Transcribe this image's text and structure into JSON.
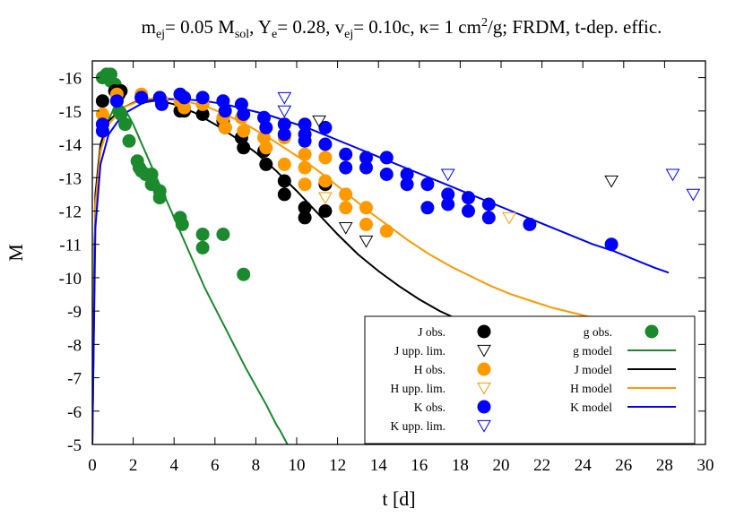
{
  "chart_data": {
    "type": "scatter",
    "title": {
      "m": "m",
      "m_sub": "ej",
      "m_rest": "= 0.05 M",
      "msol_sub": "sol",
      "ye": ", Y",
      "ye_sub": "e",
      "ye_rest": "= 0.28, v",
      "v_sub": "ej",
      "v_rest": "= 0.10c, κ= 1 cm",
      "sup": "2",
      "tail": "/g; FRDM, t-dep. effic."
    },
    "xlabel": "t [d]",
    "ylabel": "M",
    "xlim": [
      0,
      30
    ],
    "ylim": [
      -5,
      -16.5
    ],
    "x_ticks": [
      0,
      2,
      4,
      6,
      8,
      10,
      12,
      14,
      16,
      18,
      20,
      22,
      24,
      26,
      28,
      30
    ],
    "y_ticks": [
      -5,
      -6,
      -7,
      -8,
      -9,
      -10,
      -11,
      -12,
      -13,
      -14,
      -15,
      -16
    ],
    "grid": false,
    "legend_placement": "bottom-right",
    "colors": {
      "J": "#000000",
      "H": "#ff9900",
      "K": "#0000ff",
      "g": "#1a8a2c"
    },
    "legend": [
      {
        "label": "J obs.",
        "key": "J",
        "kind": "obs"
      },
      {
        "label": "g obs.",
        "key": "g",
        "kind": "obs"
      },
      {
        "label": "J upp. lim.",
        "key": "J",
        "kind": "lim"
      },
      {
        "label": "g model",
        "key": "g",
        "kind": "line"
      },
      {
        "label": "H obs.",
        "key": "H",
        "kind": "obs"
      },
      {
        "label": "J model",
        "key": "J",
        "kind": "line"
      },
      {
        "label": "H upp. lim.",
        "key": "H",
        "kind": "lim"
      },
      {
        "label": "H model",
        "key": "H",
        "kind": "line"
      },
      {
        "label": "K obs.",
        "key": "K",
        "kind": "obs"
      },
      {
        "label": "K model",
        "key": "K",
        "kind": "line"
      },
      {
        "label": "K upp. lim.",
        "key": "K",
        "kind": "lim"
      }
    ],
    "series": [
      {
        "key": "g",
        "kind": "obs",
        "points": [
          [
            0.5,
            -16.0
          ],
          [
            0.7,
            -16.1
          ],
          [
            0.9,
            -16.1
          ],
          [
            0.9,
            -15.9
          ],
          [
            1.1,
            -15.8
          ],
          [
            1.2,
            -15.3
          ],
          [
            1.3,
            -15.0
          ],
          [
            1.4,
            -14.9
          ],
          [
            1.6,
            -14.6
          ],
          [
            1.8,
            -14.1
          ],
          [
            2.2,
            -13.5
          ],
          [
            2.3,
            -13.3
          ],
          [
            2.4,
            -13.2
          ],
          [
            2.6,
            -13.1
          ],
          [
            2.9,
            -13.1
          ],
          [
            2.9,
            -12.8
          ],
          [
            3.3,
            -12.6
          ],
          [
            3.3,
            -12.4
          ],
          [
            4.3,
            -11.8
          ],
          [
            4.4,
            -11.6
          ],
          [
            5.4,
            -11.3
          ],
          [
            5.4,
            -10.9
          ],
          [
            6.4,
            -11.3
          ],
          [
            7.4,
            -10.1
          ]
        ]
      },
      {
        "key": "J",
        "kind": "obs",
        "points": [
          [
            0.5,
            -15.3
          ],
          [
            1.1,
            -15.6
          ],
          [
            1.2,
            -15.5
          ],
          [
            1.3,
            -15.5
          ],
          [
            1.4,
            -15.6
          ],
          [
            2.4,
            -15.4
          ],
          [
            3.4,
            -15.3
          ],
          [
            4.3,
            -15.0
          ],
          [
            4.5,
            -15.0
          ],
          [
            5.4,
            -14.9
          ],
          [
            6.4,
            -14.7
          ],
          [
            6.5,
            -14.5
          ],
          [
            7.3,
            -14.2
          ],
          [
            7.4,
            -13.9
          ],
          [
            8.4,
            -13.8
          ],
          [
            8.5,
            -13.4
          ],
          [
            9.4,
            -12.9
          ],
          [
            9.4,
            -12.5
          ],
          [
            10.4,
            -12.1
          ],
          [
            10.4,
            -11.8
          ],
          [
            11.4,
            -12.0
          ],
          [
            11.4,
            -12.8
          ]
        ]
      },
      {
        "key": "J",
        "kind": "lim",
        "points": [
          [
            11.1,
            -14.7
          ],
          [
            12.4,
            -11.5
          ],
          [
            13.4,
            -11.1
          ],
          [
            25.4,
            -12.9
          ]
        ]
      },
      {
        "key": "H",
        "kind": "obs",
        "points": [
          [
            0.5,
            -14.9
          ],
          [
            1.2,
            -15.5
          ],
          [
            2.4,
            -15.5
          ],
          [
            3.4,
            -15.3
          ],
          [
            4.3,
            -15.3
          ],
          [
            4.5,
            -15.1
          ],
          [
            5.4,
            -15.2
          ],
          [
            6.4,
            -14.8
          ],
          [
            6.5,
            -14.5
          ],
          [
            7.3,
            -14.8
          ],
          [
            7.4,
            -14.4
          ],
          [
            8.4,
            -14.2
          ],
          [
            8.5,
            -13.9
          ],
          [
            9.4,
            -14.2
          ],
          [
            9.4,
            -13.4
          ],
          [
            10.4,
            -13.7
          ],
          [
            10.4,
            -13.3
          ],
          [
            10.4,
            -12.8
          ],
          [
            11.4,
            -13.6
          ],
          [
            11.4,
            -12.9
          ],
          [
            12.4,
            -12.5
          ],
          [
            12.4,
            -12.1
          ],
          [
            13.4,
            -12.1
          ],
          [
            13.4,
            -11.6
          ],
          [
            14.4,
            -11.4
          ]
        ]
      },
      {
        "key": "H",
        "kind": "lim",
        "points": [
          [
            11.4,
            -12.4
          ],
          [
            20.4,
            -11.8
          ]
        ]
      },
      {
        "key": "K",
        "kind": "obs",
        "points": [
          [
            0.5,
            -14.4
          ],
          [
            0.5,
            -14.6
          ],
          [
            1.2,
            -15.3
          ],
          [
            2.4,
            -15.4
          ],
          [
            3.3,
            -15.4
          ],
          [
            3.4,
            -15.2
          ],
          [
            4.3,
            -15.5
          ],
          [
            4.5,
            -15.4
          ],
          [
            5.4,
            -15.4
          ],
          [
            6.4,
            -15.3
          ],
          [
            6.5,
            -15.0
          ],
          [
            7.3,
            -15.2
          ],
          [
            7.4,
            -14.9
          ],
          [
            8.4,
            -14.8
          ],
          [
            8.5,
            -14.5
          ],
          [
            9.4,
            -14.6
          ],
          [
            9.4,
            -14.3
          ],
          [
            10.4,
            -14.6
          ],
          [
            10.4,
            -14.3
          ],
          [
            10.4,
            -14.1
          ],
          [
            11.4,
            -14.5
          ],
          [
            11.4,
            -14.0
          ],
          [
            12.4,
            -13.7
          ],
          [
            12.4,
            -13.3
          ],
          [
            13.4,
            -13.6
          ],
          [
            13.4,
            -13.3
          ],
          [
            14.4,
            -13.6
          ],
          [
            14.4,
            -13.1
          ],
          [
            15.4,
            -13.1
          ],
          [
            15.4,
            -12.8
          ],
          [
            16.4,
            -12.8
          ],
          [
            16.4,
            -12.1
          ],
          [
            17.4,
            -12.5
          ],
          [
            17.4,
            -12.2
          ],
          [
            18.4,
            -12.4
          ],
          [
            18.4,
            -12.0
          ],
          [
            19.4,
            -12.2
          ],
          [
            19.4,
            -11.8
          ],
          [
            21.4,
            -11.6
          ],
          [
            25.4,
            -11.0
          ]
        ]
      },
      {
        "key": "K",
        "kind": "lim",
        "points": [
          [
            9.4,
            -15.4
          ],
          [
            9.4,
            -15.0
          ],
          [
            17.4,
            -13.1
          ],
          [
            28.4,
            -13.1
          ],
          [
            29.4,
            -12.5
          ]
        ]
      },
      {
        "key": "g",
        "kind": "line",
        "points": [
          [
            0,
            -5
          ],
          [
            0.1,
            -11.0
          ],
          [
            0.3,
            -13.4
          ],
          [
            0.6,
            -14.5
          ],
          [
            1.0,
            -15.0
          ],
          [
            1.3,
            -15.15
          ],
          [
            1.6,
            -15.05
          ],
          [
            2.0,
            -14.6
          ],
          [
            2.5,
            -13.9
          ],
          [
            3.0,
            -13.2
          ],
          [
            3.5,
            -12.5
          ],
          [
            4.0,
            -11.8
          ],
          [
            4.5,
            -11.1
          ],
          [
            5.0,
            -10.4
          ],
          [
            5.5,
            -9.7
          ],
          [
            6.0,
            -9.1
          ],
          [
            6.5,
            -8.5
          ],
          [
            7.0,
            -7.9
          ],
          [
            7.5,
            -7.3
          ],
          [
            8.0,
            -6.75
          ],
          [
            8.5,
            -6.2
          ],
          [
            9.0,
            -5.6
          ],
          [
            9.2,
            -5.4
          ],
          [
            9.55,
            -5.0
          ]
        ]
      },
      {
        "key": "J",
        "kind": "line",
        "points": [
          [
            0,
            -5
          ],
          [
            0.15,
            -12.5
          ],
          [
            0.4,
            -14.0
          ],
          [
            0.8,
            -14.7
          ],
          [
            1.5,
            -15.1
          ],
          [
            2.2,
            -15.3
          ],
          [
            3.0,
            -15.35
          ],
          [
            4.0,
            -15.2
          ],
          [
            5.0,
            -14.95
          ],
          [
            6.0,
            -14.6
          ],
          [
            7.0,
            -14.2
          ],
          [
            8.0,
            -13.75
          ],
          [
            9.0,
            -13.2
          ],
          [
            10.0,
            -12.6
          ],
          [
            11.0,
            -11.95
          ],
          [
            12.0,
            -11.3
          ],
          [
            13.0,
            -10.7
          ],
          [
            14.0,
            -10.2
          ],
          [
            15.0,
            -9.75
          ],
          [
            16.0,
            -9.35
          ],
          [
            17.0,
            -9.0
          ],
          [
            18.0,
            -8.72
          ]
        ]
      },
      {
        "key": "H",
        "kind": "line",
        "points": [
          [
            0,
            -5
          ],
          [
            0.15,
            -12.2
          ],
          [
            0.4,
            -13.8
          ],
          [
            0.8,
            -14.6
          ],
          [
            1.5,
            -15.1
          ],
          [
            2.5,
            -15.35
          ],
          [
            3.5,
            -15.4
          ],
          [
            4.5,
            -15.3
          ],
          [
            5.5,
            -15.15
          ],
          [
            6.5,
            -14.9
          ],
          [
            7.5,
            -14.6
          ],
          [
            8.5,
            -14.25
          ],
          [
            9.5,
            -13.85
          ],
          [
            10.5,
            -13.45
          ],
          [
            11.5,
            -13.0
          ],
          [
            12.5,
            -12.5
          ],
          [
            13.5,
            -12.0
          ],
          [
            14.5,
            -11.55
          ],
          [
            15.5,
            -11.1
          ],
          [
            16.5,
            -10.7
          ],
          [
            17.5,
            -10.35
          ],
          [
            18.5,
            -10.05
          ],
          [
            19.5,
            -9.75
          ],
          [
            20.5,
            -9.5
          ],
          [
            21.5,
            -9.3
          ],
          [
            22.5,
            -9.1
          ],
          [
            23.5,
            -8.95
          ],
          [
            24.5,
            -8.8
          ],
          [
            25.5,
            -8.68
          ],
          [
            26.5,
            -8.56
          ],
          [
            27.0,
            -8.5
          ]
        ]
      },
      {
        "key": "K",
        "kind": "line",
        "points": [
          [
            0,
            -5
          ],
          [
            0.15,
            -11.5
          ],
          [
            0.4,
            -13.4
          ],
          [
            0.8,
            -14.3
          ],
          [
            1.5,
            -14.9
          ],
          [
            2.5,
            -15.25
          ],
          [
            3.5,
            -15.35
          ],
          [
            4.5,
            -15.35
          ],
          [
            5.5,
            -15.3
          ],
          [
            6.5,
            -15.2
          ],
          [
            7.5,
            -15.05
          ],
          [
            8.5,
            -14.9
          ],
          [
            9.5,
            -14.7
          ],
          [
            10.5,
            -14.5
          ],
          [
            11.5,
            -14.25
          ],
          [
            12.5,
            -14.0
          ],
          [
            13.5,
            -13.75
          ],
          [
            14.5,
            -13.5
          ],
          [
            15.5,
            -13.25
          ],
          [
            16.5,
            -13.0
          ],
          [
            17.5,
            -12.75
          ],
          [
            18.5,
            -12.5
          ],
          [
            19.5,
            -12.25
          ],
          [
            20.5,
            -12.0
          ],
          [
            21.5,
            -11.75
          ],
          [
            22.5,
            -11.5
          ],
          [
            23.5,
            -11.25
          ],
          [
            24.5,
            -11.0
          ],
          [
            25.5,
            -10.8
          ],
          [
            26.5,
            -10.55
          ],
          [
            27.5,
            -10.3
          ],
          [
            28.2,
            -10.15
          ]
        ]
      }
    ]
  }
}
